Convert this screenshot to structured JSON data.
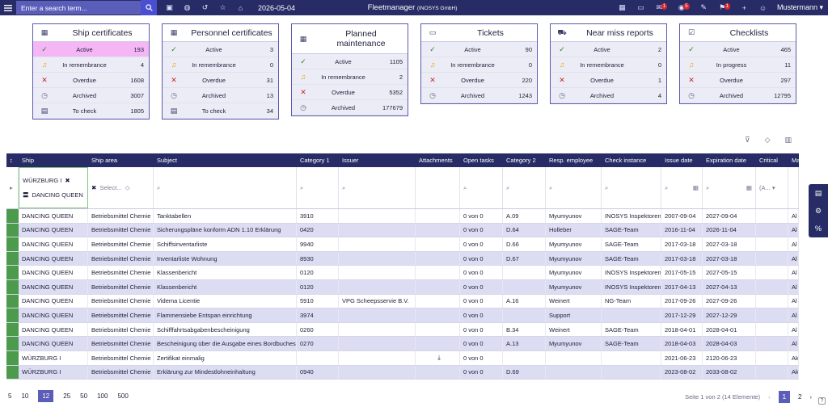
{
  "topbar": {
    "search_placeholder": "Enter a search term...",
    "date": "2026-05-04",
    "title": "Fleetmanager",
    "company": "(INOSYS GmbH)",
    "badges": [
      "1",
      "5",
      "1"
    ],
    "user": "Mustermann"
  },
  "cards": [
    {
      "title": "Ship certificates",
      "icon": "building-icon",
      "rows": [
        {
          "label": "Active",
          "value": "193",
          "icon": "check-icon"
        },
        {
          "label": "In remembrance",
          "value": "4",
          "icon": "bell-icon"
        },
        {
          "label": "Overdue",
          "value": "1608",
          "icon": "x-icon"
        },
        {
          "label": "Archived",
          "value": "3007",
          "icon": "clock-icon"
        },
        {
          "label": "To check",
          "value": "1805",
          "icon": "calendar-check-icon"
        }
      ]
    },
    {
      "title": "Personnel certificates",
      "icon": "building-icon",
      "rows": [
        {
          "label": "Active",
          "value": "3",
          "icon": "check-icon"
        },
        {
          "label": "In remembrance",
          "value": "0",
          "icon": "bell-icon"
        },
        {
          "label": "Overdue",
          "value": "31",
          "icon": "x-icon"
        },
        {
          "label": "Archived",
          "value": "13",
          "icon": "clock-icon"
        },
        {
          "label": "To check",
          "value": "34",
          "icon": "calendar-check-icon"
        }
      ]
    },
    {
      "title": "Planned maintenance",
      "icon": "building-icon",
      "rows": [
        {
          "label": "Active",
          "value": "1105",
          "icon": "check-icon"
        },
        {
          "label": "In remembrance",
          "value": "2",
          "icon": "bell-icon"
        },
        {
          "label": "Overdue",
          "value": "5352",
          "icon": "x-icon"
        },
        {
          "label": "Archived",
          "value": "177679",
          "icon": "clock-icon"
        }
      ]
    },
    {
      "title": "Tickets",
      "icon": "ticket-icon",
      "rows": [
        {
          "label": "Active",
          "value": "90",
          "icon": "check-icon"
        },
        {
          "label": "In remembrance",
          "value": "0",
          "icon": "bell-icon"
        },
        {
          "label": "Overdue",
          "value": "220",
          "icon": "x-icon"
        },
        {
          "label": "Archived",
          "value": "1243",
          "icon": "clock-icon"
        }
      ]
    },
    {
      "title": "Near miss reports",
      "icon": "vehicle-icon",
      "rows": [
        {
          "label": "Active",
          "value": "2",
          "icon": "check-icon"
        },
        {
          "label": "In remembrance",
          "value": "0",
          "icon": "bell-icon"
        },
        {
          "label": "Overdue",
          "value": "1",
          "icon": "x-icon"
        },
        {
          "label": "Archived",
          "value": "4",
          "icon": "clock-icon"
        }
      ]
    },
    {
      "title": "Checklists",
      "icon": "checkbox-icon",
      "rows": [
        {
          "label": "Active",
          "value": "465",
          "icon": "check-icon"
        },
        {
          "label": "In progress",
          "value": "11",
          "icon": "bell-icon"
        },
        {
          "label": "Overdue",
          "value": "297",
          "icon": "x-icon"
        },
        {
          "label": "Archived",
          "value": "12795",
          "icon": "clock-icon"
        }
      ]
    }
  ],
  "grid": {
    "columns": [
      "Ship",
      "Ship area",
      "Subject",
      "Category 1",
      "Issuer",
      "Attachments",
      "Open tasks",
      "Category 2",
      "Resp. employee",
      "Check instance",
      "Issue date",
      "Expiration date",
      "Critical",
      "Ma"
    ],
    "filter": {
      "ship_chips": [
        "WÜRZBURG I",
        "DANCING QUEEN"
      ],
      "area_placeholder": "Select...",
      "critical_value": "(A..."
    },
    "rows": [
      [
        "DANCING QUEEN",
        "Betriebsmittel Chemie",
        "Tanktabellen",
        "3910",
        "",
        "",
        "0 von 0",
        "A.09",
        "Myumyunov",
        "INOSYS Inspektoren",
        "2007-09-04",
        "2027-09-04",
        "",
        "Al"
      ],
      [
        "DANCING QUEEN",
        "Betriebsmittel Chemie",
        "Sicherungspläne konform ADN 1.10 Erklärung",
        "0420",
        "",
        "",
        "0 von 0",
        "D.64",
        "Holleber",
        "SAGE-Team",
        "2016-11-04",
        "2026-11-04",
        "",
        "Al"
      ],
      [
        "DANCING QUEEN",
        "Betriebsmittel Chemie",
        "Schiffsinventarliste",
        "9940",
        "",
        "",
        "0 von 0",
        "D.66",
        "Myumyunov",
        "SAGE-Team",
        "2017-03-18",
        "2027-03-18",
        "",
        "Al"
      ],
      [
        "DANCING QUEEN",
        "Betriebsmittel Chemie",
        "Inventarliste Wohnung",
        "8930",
        "",
        "",
        "0 von 0",
        "D.67",
        "Myumyunov",
        "SAGE-Team",
        "2017-03-18",
        "2027-03-18",
        "",
        "Al"
      ],
      [
        "DANCING QUEEN",
        "Betriebsmittel Chemie",
        "Klassenbericht",
        "0120",
        "",
        "",
        "0 von 0",
        "",
        "Myumyunov",
        "INOSYS Inspektoren",
        "2017-05-15",
        "2027-05-15",
        "",
        "Al"
      ],
      [
        "DANCING QUEEN",
        "Betriebsmittel Chemie",
        "Klassenbericht",
        "0120",
        "",
        "",
        "0 von 0",
        "",
        "Myumyunov",
        "INOSYS Inspektoren",
        "2017-04-13",
        "2027-04-13",
        "",
        "Al"
      ],
      [
        "DANCING QUEEN",
        "Betriebsmittel Chemie",
        "Videma Licentie",
        "5910",
        "VPG Scheepsservie B.V.",
        "",
        "0 von 0",
        "A.16",
        "Weinert",
        "NG-Team",
        "2017-09-26",
        "2027-09-26",
        "",
        "Al"
      ],
      [
        "DANCING QUEEN",
        "Betriebsmittel Chemie",
        "Flammensiebe Entspan einrichtung",
        "3974",
        "",
        "",
        "0 von 0",
        "",
        "Support",
        "",
        "2017-12-29",
        "2027-12-29",
        "",
        "Al"
      ],
      [
        "DANCING QUEEN",
        "Betriebsmittel Chemie",
        "Schifffahrtsabgabenbescheinigung",
        "0260",
        "",
        "",
        "0 von 0",
        "B.34",
        "Weinert",
        "SAGE-Team",
        "2018-04-01",
        "2028-04-01",
        "",
        "Al"
      ],
      [
        "DANCING QUEEN",
        "Betriebsmittel Chemie",
        "Bescheinigung über die Ausgabe eines Bordbuches",
        "0270",
        "",
        "",
        "0 von 0",
        "A.13",
        "Myumyunov",
        "SAGE-Team",
        "2018-04-03",
        "2028-04-03",
        "",
        "Al"
      ],
      [
        "WÜRZBURG I",
        "Betriebsmittel Chemie",
        "Zertifikat einmalig",
        "",
        "",
        "download",
        "0 von 0",
        "",
        "",
        "",
        "2021-06-23",
        "2120-06-23",
        "",
        "Ak"
      ],
      [
        "WÜRZBURG I",
        "Betriebsmittel Chemie",
        "Erklärung zur Mindestlohneinhaltung",
        "0940",
        "",
        "",
        "0 von 0",
        "D.69",
        "",
        "",
        "2023-08-02",
        "2033-08-02",
        "",
        "Ak"
      ]
    ]
  },
  "pager": {
    "sizes": [
      "5",
      "10",
      "12",
      "25",
      "50",
      "100",
      "500"
    ],
    "active_size": "12",
    "info": "Seite 1 von 2 (14 Elemente)",
    "pages": [
      "1",
      "2"
    ]
  }
}
